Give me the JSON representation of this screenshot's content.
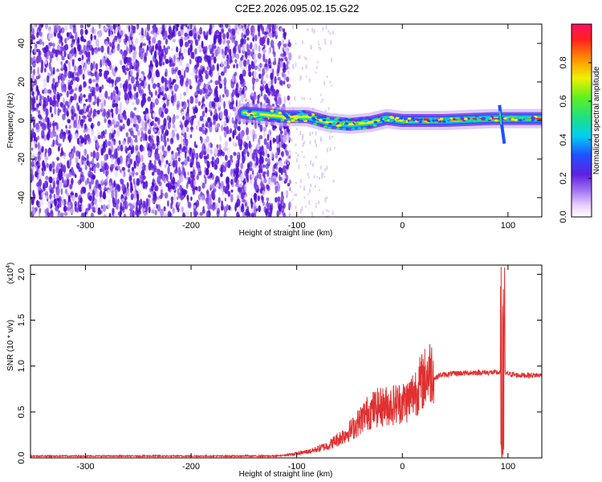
{
  "title": "C2E2.2026.095.02.15.G22",
  "chart_data": [
    {
      "type": "heatmap",
      "xlabel": "Height of straight line (km)",
      "ylabel": "Frequency (Hz)",
      "xlim": [
        -352,
        132
      ],
      "ylim": [
        -50,
        50
      ],
      "x_ticks": [
        -300,
        -200,
        -100,
        0,
        100
      ],
      "y_ticks": [
        -40,
        -20,
        0,
        20,
        40
      ],
      "noise_region": [
        -352,
        -110
      ],
      "signal_trace": [
        {
          "x": -150,
          "f": 4
        },
        {
          "x": -110,
          "f": 2
        },
        {
          "x": -90,
          "f": 2
        },
        {
          "x": -70,
          "f": -1
        },
        {
          "x": -50,
          "f": -2
        },
        {
          "x": -30,
          "f": -1
        },
        {
          "x": -15,
          "f": 1
        },
        {
          "x": 0,
          "f": 0
        },
        {
          "x": 40,
          "f": 0
        },
        {
          "x": 85,
          "f": 1
        },
        {
          "x": 100,
          "f": 1
        },
        {
          "x": 132,
          "f": 1
        }
      ],
      "colorbar": {
        "label": "Normalized spectral amplitude",
        "range": [
          0,
          1
        ],
        "ticks": [
          0.0,
          0.2,
          0.4,
          0.6,
          0.8
        ]
      }
    },
    {
      "type": "line",
      "xlabel": "Height of straight line (km)",
      "ylabel": "SNR (10 * v/v)",
      "y_multiplier": "(x10",
      "y_multiplier_exp": "4",
      "y_multiplier_close": ")",
      "xlim": [
        -352,
        132
      ],
      "ylim": [
        0,
        2.1
      ],
      "x_ticks": [
        -300,
        -200,
        -100,
        0,
        100
      ],
      "y_ticks": [
        0.0,
        0.5,
        1.0,
        1.5,
        2.0
      ],
      "series_color": "#e03030",
      "envelope": [
        {
          "x": -352,
          "y": 0.02
        },
        {
          "x": -120,
          "y": 0.02
        },
        {
          "x": -100,
          "y": 0.04
        },
        {
          "x": -85,
          "y": 0.07
        },
        {
          "x": -70,
          "y": 0.12
        },
        {
          "x": -55,
          "y": 0.22
        },
        {
          "x": -45,
          "y": 0.3
        },
        {
          "x": -35,
          "y": 0.42
        },
        {
          "x": -25,
          "y": 0.48
        },
        {
          "x": -15,
          "y": 0.5
        },
        {
          "x": -5,
          "y": 0.52
        },
        {
          "x": 5,
          "y": 0.55
        },
        {
          "x": 15,
          "y": 0.68
        },
        {
          "x": 25,
          "y": 0.82
        },
        {
          "x": 35,
          "y": 0.9
        },
        {
          "x": 50,
          "y": 0.92
        },
        {
          "x": 70,
          "y": 0.93
        },
        {
          "x": 90,
          "y": 0.93
        },
        {
          "x": 110,
          "y": 0.9
        },
        {
          "x": 132,
          "y": 0.9
        }
      ],
      "spike": {
        "x": [
          93,
          97
        ],
        "y_max": 2.1,
        "y_min": 0.0
      }
    }
  ]
}
